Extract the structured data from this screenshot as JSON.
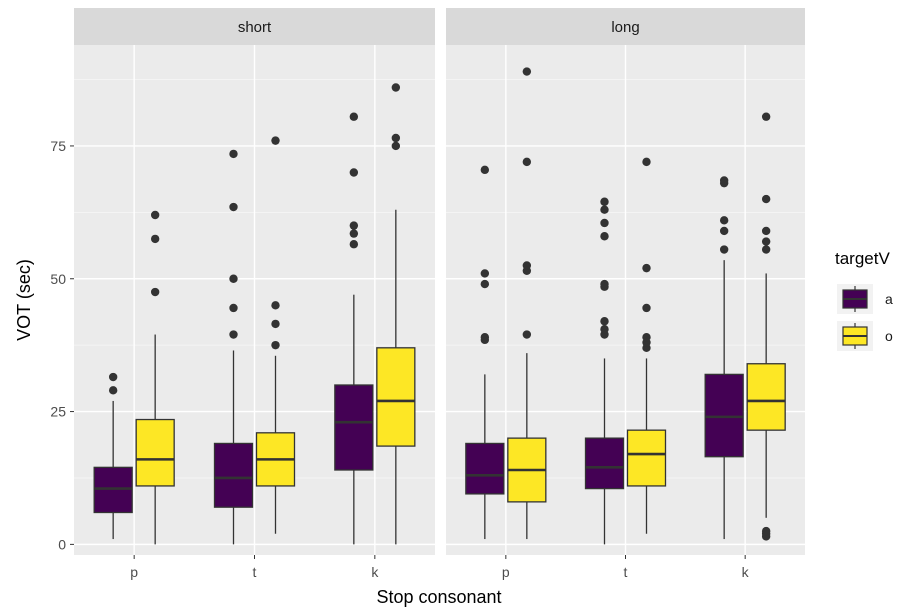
{
  "chart_data": {
    "type": "boxplot",
    "xlabel": "Stop consonant",
    "ylabel": "VOT (sec)",
    "ylim": [
      -2,
      94
    ],
    "yticks": [
      0,
      25,
      50,
      75
    ],
    "categories": [
      "p",
      "t",
      "k"
    ],
    "facets": [
      "short",
      "long"
    ],
    "grid": true,
    "legend": {
      "title": "targetV",
      "placement": "right",
      "entries": [
        {
          "label": "a",
          "color": "#440154"
        },
        {
          "label": "o",
          "color": "#FDE725"
        }
      ]
    },
    "panels": [
      {
        "facet": "short",
        "groups": [
          {
            "category": "p",
            "series": "a",
            "whisker_low": 1,
            "q1": 6,
            "median": 10.5,
            "q3": 14.5,
            "whisker_high": 27,
            "outliers": [
              29,
              31.5
            ]
          },
          {
            "category": "p",
            "series": "o",
            "whisker_low": 0,
            "q1": 11,
            "median": 16,
            "q3": 23.5,
            "whisker_high": 39.5,
            "outliers": [
              47.5,
              57.5,
              62
            ]
          },
          {
            "category": "t",
            "series": "a",
            "whisker_low": 0,
            "q1": 7,
            "median": 12.5,
            "q3": 19,
            "whisker_high": 36.5,
            "outliers": [
              39.5,
              44.5,
              50,
              63.5,
              73.5
            ]
          },
          {
            "category": "t",
            "series": "o",
            "whisker_low": 2,
            "q1": 11,
            "median": 16,
            "q3": 21,
            "whisker_high": 35.5,
            "outliers": [
              37.5,
              41.5,
              45,
              76
            ]
          },
          {
            "category": "k",
            "series": "a",
            "whisker_low": 0,
            "q1": 14,
            "median": 23,
            "q3": 30,
            "whisker_high": 47,
            "outliers": [
              56.5,
              58.5,
              60,
              70,
              80.5
            ]
          },
          {
            "category": "k",
            "series": "o",
            "whisker_low": 0,
            "q1": 18.5,
            "median": 27,
            "q3": 37,
            "whisker_high": 63,
            "outliers": [
              75,
              76.5,
              86
            ]
          }
        ]
      },
      {
        "facet": "long",
        "groups": [
          {
            "category": "p",
            "series": "a",
            "whisker_low": 1,
            "q1": 9.5,
            "median": 13,
            "q3": 19,
            "whisker_high": 32,
            "outliers": [
              38.5,
              39,
              49,
              51,
              70.5
            ]
          },
          {
            "category": "p",
            "series": "o",
            "whisker_low": 1,
            "q1": 8,
            "median": 14,
            "q3": 20,
            "whisker_high": 36,
            "outliers": [
              39.5,
              51.5,
              52.5,
              72,
              89
            ]
          },
          {
            "category": "t",
            "series": "a",
            "whisker_low": 0,
            "q1": 10.5,
            "median": 14.5,
            "q3": 20,
            "whisker_high": 35,
            "outliers": [
              39.5,
              40.5,
              42,
              48.5,
              49,
              58,
              60.5,
              63,
              64.5
            ]
          },
          {
            "category": "t",
            "series": "o",
            "whisker_low": 2,
            "q1": 11,
            "median": 17,
            "q3": 21.5,
            "whisker_high": 35,
            "outliers": [
              37,
              38,
              39,
              44.5,
              52,
              72
            ]
          },
          {
            "category": "k",
            "series": "a",
            "whisker_low": 1,
            "q1": 16.5,
            "median": 24,
            "q3": 32,
            "whisker_high": 53.5,
            "outliers": [
              55.5,
              59,
              61,
              68,
              68.5
            ]
          },
          {
            "category": "k",
            "series": "o",
            "whisker_low": 5,
            "q1": 21.5,
            "median": 27,
            "q3": 34,
            "whisker_high": 51,
            "outliers": [
              1.5,
              2,
              2.5,
              55.5,
              57,
              59,
              65,
              80.5
            ]
          }
        ]
      }
    ]
  }
}
